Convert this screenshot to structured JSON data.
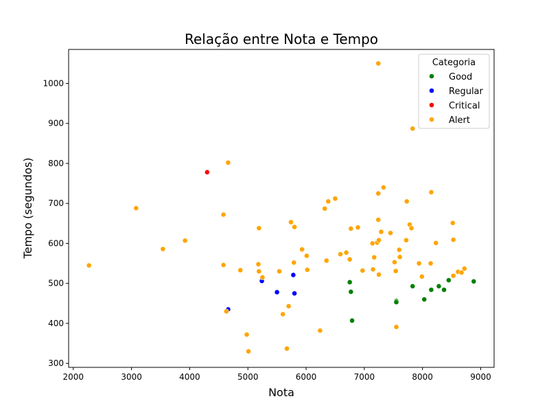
{
  "chart_data": {
    "type": "scatter",
    "title": "Relação entre Nota e Tempo",
    "xlabel": "Nota",
    "ylabel": "Tempo (segundos)",
    "xlim": [
      1920,
      9230
    ],
    "ylim": [
      290,
      1085
    ],
    "xticks": [
      2000,
      3000,
      4000,
      5000,
      6000,
      7000,
      8000,
      9000
    ],
    "yticks": [
      300,
      400,
      500,
      600,
      700,
      800,
      900,
      1000
    ],
    "legend": {
      "title": "Categoria",
      "placement": "top-right"
    },
    "grid": false,
    "series": [
      {
        "name": "Good",
        "color": "#008000",
        "points": [
          [
            6750,
            503
          ],
          [
            6770,
            479
          ],
          [
            6790,
            407
          ],
          [
            7550,
            456
          ],
          [
            7550,
            453
          ],
          [
            7830,
            493
          ],
          [
            8030,
            460
          ],
          [
            8150,
            484
          ],
          [
            8280,
            493
          ],
          [
            8370,
            484
          ],
          [
            8450,
            508
          ],
          [
            8880,
            505
          ]
        ]
      },
      {
        "name": "Regular",
        "color": "#0000ff",
        "points": [
          [
            4660,
            435
          ],
          [
            5240,
            506
          ],
          [
            5500,
            478
          ],
          [
            5780,
            521
          ],
          [
            5800,
            475
          ]
        ]
      },
      {
        "name": "Critical",
        "color": "#ff0000",
        "points": [
          [
            4300,
            778
          ]
        ]
      },
      {
        "name": "Alert",
        "color": "#ffa500",
        "points": [
          [
            2270,
            545
          ],
          [
            3080,
            688
          ],
          [
            3540,
            586
          ],
          [
            3920,
            607
          ],
          [
            4580,
            672
          ],
          [
            4580,
            546
          ],
          [
            4630,
            430
          ],
          [
            4660,
            802
          ],
          [
            4870,
            533
          ],
          [
            4980,
            372
          ],
          [
            5010,
            330
          ],
          [
            5180,
            548
          ],
          [
            5190,
            638
          ],
          [
            5190,
            530
          ],
          [
            5250,
            515
          ],
          [
            5540,
            530
          ],
          [
            5600,
            423
          ],
          [
            5670,
            337
          ],
          [
            5700,
            443
          ],
          [
            5740,
            653
          ],
          [
            5790,
            552
          ],
          [
            5800,
            641
          ],
          [
            5930,
            585
          ],
          [
            6010,
            569
          ],
          [
            6020,
            534
          ],
          [
            6240,
            382
          ],
          [
            6320,
            687
          ],
          [
            6350,
            557
          ],
          [
            6380,
            705
          ],
          [
            6500,
            712
          ],
          [
            6590,
            573
          ],
          [
            6690,
            577
          ],
          [
            6750,
            560
          ],
          [
            6770,
            637
          ],
          [
            6890,
            640
          ],
          [
            6970,
            532
          ],
          [
            7140,
            600
          ],
          [
            7150,
            535
          ],
          [
            7170,
            565
          ],
          [
            7220,
            602
          ],
          [
            7240,
            1050
          ],
          [
            7240,
            725
          ],
          [
            7240,
            659
          ],
          [
            7250,
            608
          ],
          [
            7250,
            522
          ],
          [
            7290,
            629
          ],
          [
            7330,
            740
          ],
          [
            7450,
            626
          ],
          [
            7520,
            553
          ],
          [
            7540,
            531
          ],
          [
            7550,
            391
          ],
          [
            7600,
            584
          ],
          [
            7610,
            566
          ],
          [
            7720,
            608
          ],
          [
            7730,
            705
          ],
          [
            7780,
            647
          ],
          [
            7810,
            638
          ],
          [
            7830,
            887
          ],
          [
            7940,
            550
          ],
          [
            7990,
            517
          ],
          [
            8140,
            550
          ],
          [
            8150,
            728
          ],
          [
            8230,
            601
          ],
          [
            8520,
            651
          ],
          [
            8530,
            609
          ],
          [
            8530,
            519
          ],
          [
            8610,
            529
          ],
          [
            8670,
            527
          ],
          [
            8720,
            537
          ]
        ]
      }
    ]
  }
}
